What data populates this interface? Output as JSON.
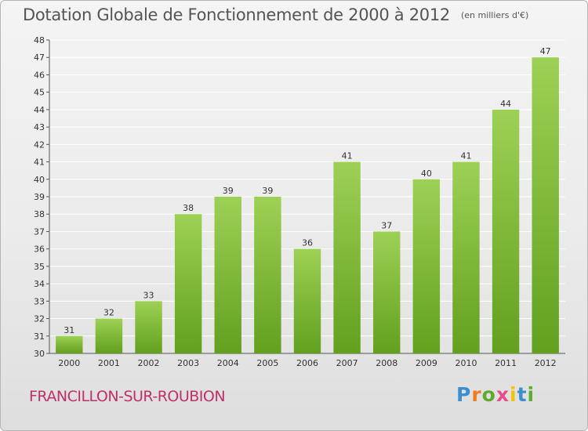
{
  "header": {
    "title": "Dotation Globale de Fonctionnement de 2000 à 2012",
    "unit": "(en milliers d'€)"
  },
  "footer": {
    "commune": "FRANCILLON-SUR-ROUBION",
    "logo_text": "Proxiti",
    "logo_colors": [
      "#3b8fd1",
      "#f07d1a",
      "#5caa2e",
      "#e84c8a",
      "#f5c400",
      "#3b8fd1",
      "#5caa2e"
    ]
  },
  "colors": {
    "bar_light": "#9dd155",
    "bar_dark": "#62a01e",
    "grid": "#ffffff",
    "axis": "#555555",
    "commune": "#c0306a"
  },
  "chart_data": {
    "type": "bar",
    "title": "Dotation Globale de Fonctionnement de 2000 à 2012",
    "subtitle": "(en milliers d'€)",
    "xlabel": "",
    "ylabel": "",
    "categories": [
      "2000",
      "2001",
      "2002",
      "2003",
      "2004",
      "2005",
      "2006",
      "2007",
      "2008",
      "2009",
      "2010",
      "2011",
      "2012"
    ],
    "values": [
      31,
      32,
      33,
      38,
      39,
      39,
      36,
      41,
      37,
      40,
      41,
      44,
      47
    ],
    "ylim": [
      30,
      48
    ],
    "yticks": [
      30,
      31,
      32,
      33,
      34,
      35,
      36,
      37,
      38,
      39,
      40,
      41,
      42,
      43,
      44,
      45,
      46,
      47,
      48
    ],
    "grid": true,
    "legend": "none"
  }
}
